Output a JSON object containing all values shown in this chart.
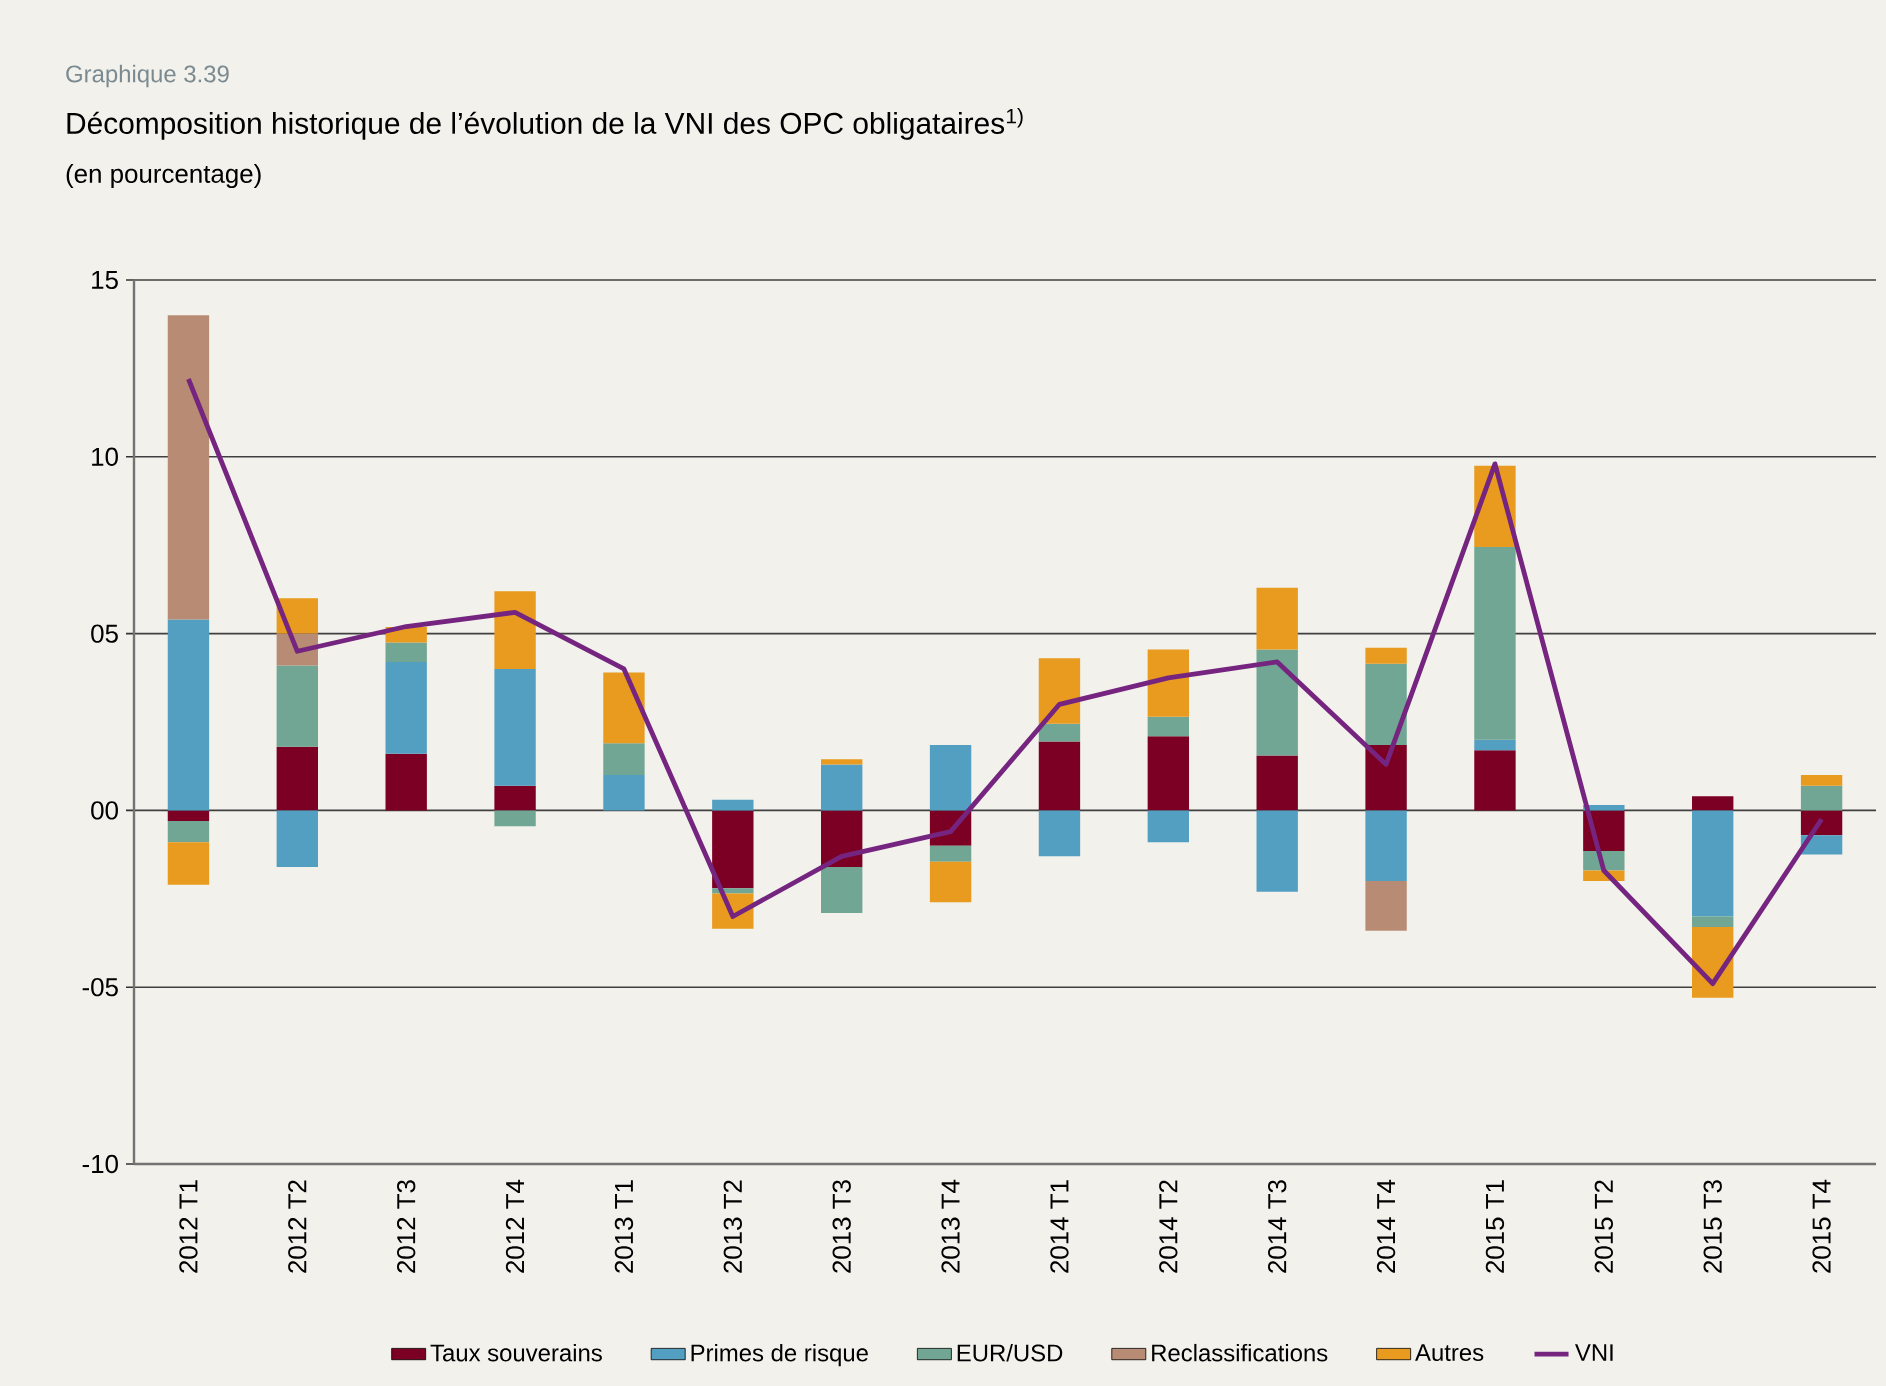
{
  "chart_data": {
    "type": "bar",
    "stacked": true,
    "annotations": [
      "Graphique 3.39"
    ],
    "title": "Décomposition historique de l’évolution de la VNI des OPC obligataires$^{1)}$",
    "subtitle": "(en pourcentage)",
    "categories": [
      "2012 T1",
      "2012 T2",
      "2012 T3",
      "2012 T4",
      "2013 T1",
      "2013 T2",
      "2013 T3",
      "2013 T4",
      "2014 T1",
      "2014 T2",
      "2014 T3",
      "2014 T4",
      "2015 T1",
      "2015 T2",
      "2015 T3",
      "2015 T4"
    ],
    "series": [
      {
        "name": "Taux souverains",
        "color": "#7b0023",
        "values": [
          -0.3,
          1.8,
          1.6,
          0.7,
          null,
          -2.2,
          -1.6,
          -1.0,
          1.95,
          2.1,
          1.55,
          1.85,
          1.7,
          -1.15,
          0.4,
          -0.7
        ]
      },
      {
        "name": "Primes de risque",
        "color": "#529fc2",
        "values": [
          5.4,
          -1.6,
          2.6,
          3.3,
          1.0,
          0.3,
          1.3,
          1.85,
          -1.3,
          -0.9,
          -2.3,
          -2.0,
          0.3,
          0.15,
          -3.0,
          -0.55
        ]
      },
      {
        "name": "EUR/USD",
        "color": "#70a693",
        "values": [
          -0.6,
          2.3,
          0.55,
          -0.45,
          0.9,
          -0.15,
          -1.3,
          -0.45,
          0.5,
          0.55,
          3.0,
          2.3,
          5.45,
          -0.55,
          -0.3,
          0.7
        ]
      },
      {
        "name": "Reclassifications",
        "color": "#b88c74",
        "values": [
          8.6,
          0.9,
          null,
          null,
          null,
          null,
          null,
          null,
          null,
          null,
          null,
          -1.4,
          null,
          null,
          null,
          null
        ]
      },
      {
        "name": "Autres",
        "color": "#e89b1e",
        "values": [
          -1.2,
          1.0,
          0.44,
          2.2,
          2.0,
          -1.0,
          0.15,
          -1.15,
          1.85,
          1.9,
          1.75,
          0.45,
          2.3,
          -0.3,
          -2.0,
          0.3
        ]
      },
      {
        "name": "VNI",
        "type": "line",
        "color": "#75257f",
        "values": [
          12.2,
          4.5,
          5.2,
          5.6,
          4.0,
          -3.0,
          -1.3,
          -0.6,
          3.0,
          3.75,
          4.2,
          1.3,
          9.8,
          -1.7,
          -4.9,
          -0.25
        ]
      }
    ],
    "ylim": [
      -10,
      15
    ],
    "yticks": [
      15,
      10,
      {
        "value": 5,
        "label": "05"
      },
      {
        "value": 0,
        "label": "00"
      },
      {
        "value": -5,
        "label": "-05"
      },
      -10
    ],
    "grid": "y",
    "legend": "bottom"
  }
}
